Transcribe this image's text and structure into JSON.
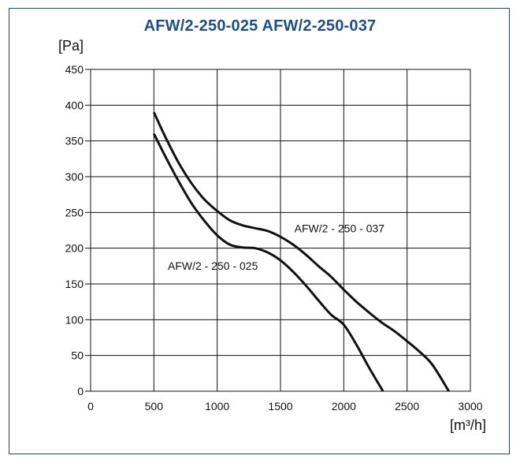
{
  "chart_data": {
    "type": "line",
    "title": "AFW/2-250-025 AFW/2-250-037",
    "xlabel": "[m³/h]",
    "ylabel": "[Pa]",
    "xlim": [
      0,
      3000
    ],
    "ylim": [
      0,
      450
    ],
    "xticks": [
      0,
      500,
      1000,
      1500,
      2000,
      2500,
      3000
    ],
    "yticks": [
      0,
      50,
      100,
      150,
      200,
      250,
      300,
      350,
      400,
      450
    ],
    "grid": true,
    "legend": "none",
    "series": [
      {
        "name": "AFW/2 - 250 - 025",
        "x": [
          500,
          600,
          700,
          800,
          900,
          1000,
          1100,
          1200,
          1300,
          1400,
          1500,
          1600,
          1700,
          1800,
          1900,
          2000,
          2100,
          2200,
          2310
        ],
        "y": [
          360,
          325,
          292,
          262,
          238,
          218,
          205,
          201,
          200,
          194,
          183,
          167,
          148,
          127,
          107,
          93,
          65,
          33,
          0
        ],
        "color": "#111111"
      },
      {
        "name": "AFW/2 - 250 - 037",
        "x": [
          500,
          600,
          700,
          800,
          900,
          1000,
          1100,
          1200,
          1300,
          1400,
          1500,
          1600,
          1700,
          1800,
          1900,
          2000,
          2100,
          2200,
          2300,
          2400,
          2500,
          2600,
          2700,
          2830
        ],
        "y": [
          390,
          352,
          318,
          290,
          268,
          252,
          239,
          232,
          228,
          224,
          216,
          205,
          191,
          175,
          160,
          142,
          125,
          110,
          96,
          84,
          70,
          55,
          37,
          0
        ],
        "color": "#111111"
      }
    ],
    "annotations": [
      {
        "text": "AFW/2 - 250 - 037",
        "x": 1610,
        "y": 222
      },
      {
        "text": "AFW/2 - 250 - 025",
        "x": 610,
        "y": 170
      }
    ]
  }
}
